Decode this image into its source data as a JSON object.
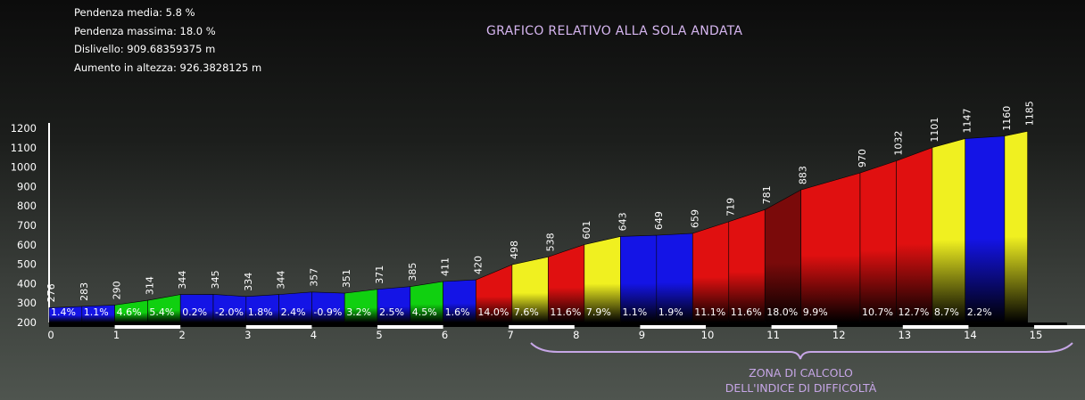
{
  "stats": {
    "pendenza_media": "Pendenza media: 5.8 %",
    "pendenza_massima": "Pendenza massima: 18.0 %",
    "dislivello": "Dislivello: 909.68359375 m",
    "aumento": "Aumento in altezza: 926.3828125 m"
  },
  "title": "GRAFICO RELATIVO ALLA SOLA ANDATA",
  "zona": {
    "line1": "ZONA DI CALCOLO",
    "line2": "DELL'INDICE DI DIFFICOLTÀ"
  },
  "colors": {
    "blue": "#1414e6",
    "green": "#10d010",
    "yellow": "#f0f020",
    "red": "#e01010",
    "darkred": "#7a0a0a",
    "axis": "#ffffff",
    "bracket": "#c6a6e6"
  },
  "chart_data": {
    "type": "area",
    "xlabel": "",
    "ylabel": "",
    "xlim": [
      0,
      15.5
    ],
    "ylim": [
      200,
      1200
    ],
    "x_ticks": [
      "0",
      "1",
      "2",
      "3",
      "4",
      "5",
      "6",
      "7",
      "8",
      "9",
      "10",
      "11",
      "12",
      "13",
      "14",
      "15"
    ],
    "y_ticks": [
      "200",
      "300",
      "400",
      "500",
      "600",
      "700",
      "800",
      "900",
      "1000",
      "1100",
      "1200"
    ],
    "x": [
      0,
      0.5,
      1,
      1.5,
      2,
      2.5,
      3,
      3.5,
      4,
      4.5,
      5,
      5.5,
      6,
      6.5,
      7,
      7.5,
      8,
      8.5,
      9,
      9.5,
      10,
      10.5,
      11,
      11.5,
      12,
      12.5,
      13,
      13.5,
      14,
      14.5,
      15,
      15.5
    ],
    "altitudes": [
      276,
      283,
      290,
      314,
      344,
      345,
      334,
      344,
      357,
      351,
      371,
      385,
      411,
      420,
      498,
      538,
      601,
      643,
      649,
      659,
      719,
      781,
      883,
      970,
      1032,
      1101,
      1147,
      1160,
      1185
    ],
    "segments": [
      {
        "x": 0,
        "x2": 0.5,
        "slope": "1.4%",
        "color": "blue"
      },
      {
        "x": 0.5,
        "x2": 1,
        "slope": "1.1%",
        "color": "blue"
      },
      {
        "x": 1,
        "x2": 1.5,
        "slope": "4.6%",
        "color": "green"
      },
      {
        "x": 1.5,
        "x2": 2,
        "slope": "5.4%",
        "color": "green"
      },
      {
        "x": 2,
        "x2": 2.5,
        "slope": "0.2%",
        "color": "blue"
      },
      {
        "x": 2.5,
        "x2": 3,
        "slope": "-2.0%",
        "color": "blue"
      },
      {
        "x": 3,
        "x2": 3.5,
        "slope": "1.8%",
        "color": "blue"
      },
      {
        "x": 3.5,
        "x2": 4,
        "slope": "2.4%",
        "color": "blue"
      },
      {
        "x": 4,
        "x2": 4.5,
        "slope": "-0.9%",
        "color": "blue"
      },
      {
        "x": 4.5,
        "x2": 5,
        "slope": "3.2%",
        "color": "green"
      },
      {
        "x": 5,
        "x2": 5.5,
        "slope": "2.5%",
        "color": "blue"
      },
      {
        "x": 5.5,
        "x2": 6,
        "slope": "4.5%",
        "color": "green"
      },
      {
        "x": 6,
        "x2": 6.5,
        "slope": "1.6%",
        "color": "blue"
      },
      {
        "x": 6.5,
        "x2": 7.05,
        "slope": "14.0%",
        "color": "red"
      },
      {
        "x": 7.05,
        "x2": 7.6,
        "slope": "7.6%",
        "color": "yellow"
      },
      {
        "x": 7.6,
        "x2": 8.15,
        "slope": "11.6%",
        "color": "red"
      },
      {
        "x": 8.15,
        "x2": 8.7,
        "slope": "7.9%",
        "color": "yellow"
      },
      {
        "x": 8.7,
        "x2": 9.25,
        "slope": "1.1%",
        "color": "blue"
      },
      {
        "x": 9.25,
        "x2": 9.8,
        "slope": "1.9%",
        "color": "blue"
      },
      {
        "x": 9.8,
        "x2": 10.35,
        "slope": "11.1%",
        "color": "red"
      },
      {
        "x": 10.35,
        "x2": 10.9,
        "slope": "11.6%",
        "color": "red"
      },
      {
        "x": 10.9,
        "x2": 11.45,
        "slope": "18.0%",
        "color": "darkred"
      },
      {
        "x": 11.45,
        "x2": 12.35,
        "slope": "9.9%",
        "color": "red"
      },
      {
        "x": 12.35,
        "x2": 12.9,
        "slope": "10.7%",
        "color": "red"
      },
      {
        "x": 12.9,
        "x2": 13.45,
        "slope": "12.7%",
        "color": "red"
      },
      {
        "x": 13.45,
        "x2": 13.95,
        "slope": "8.7%",
        "color": "yellow"
      },
      {
        "x": 13.95,
        "x2": 14.55,
        "slope": "2.2%",
        "color": "blue"
      },
      {
        "x": 14.55,
        "x2": 14.9,
        "slope": "",
        "color": "yellow"
      }
    ]
  }
}
